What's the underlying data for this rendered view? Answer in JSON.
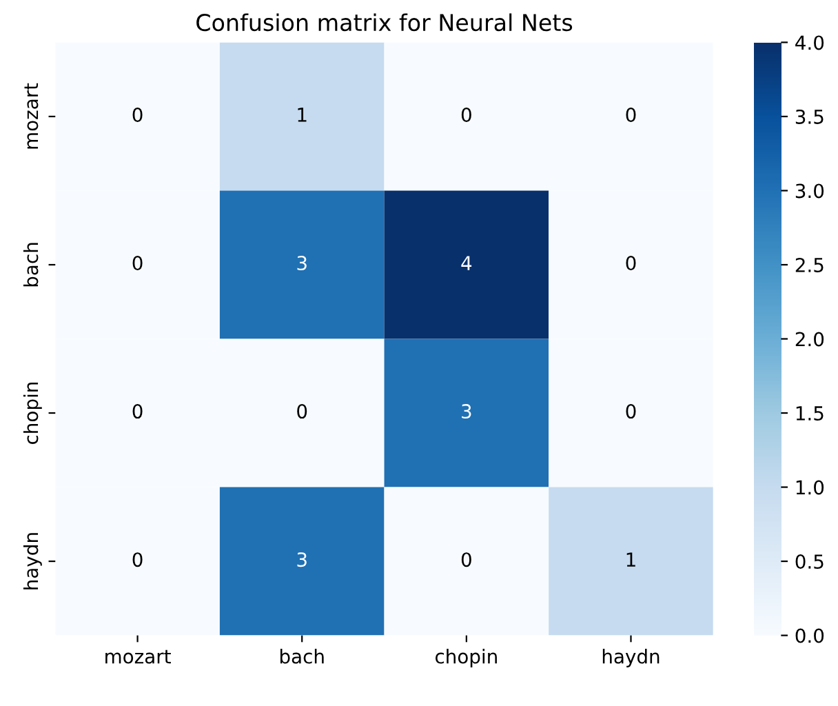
{
  "chart_data": {
    "type": "heatmap",
    "title": "Confusion matrix for Neural Nets",
    "categories": [
      "mozart",
      "bach",
      "chopin",
      "haydn"
    ],
    "y_categories": [
      "mozart",
      "bach",
      "chopin",
      "haydn"
    ],
    "cells": [
      [
        0,
        1,
        0,
        0
      ],
      [
        0,
        3,
        4,
        0
      ],
      [
        0,
        0,
        3,
        0
      ],
      [
        0,
        3,
        0,
        1
      ]
    ],
    "clim": [
      0.0,
      4.0
    ],
    "cticks": [
      {
        "value": 0,
        "label": "0.0"
      },
      0.5,
      {
        "value": 1,
        "label": "1.0"
      },
      1.5,
      {
        "value": 2,
        "label": "2.0"
      },
      2.5,
      {
        "value": 3,
        "label": "3.0"
      },
      3.5,
      {
        "value": 4,
        "label": "4.0"
      }
    ],
    "data_labels": true
  }
}
